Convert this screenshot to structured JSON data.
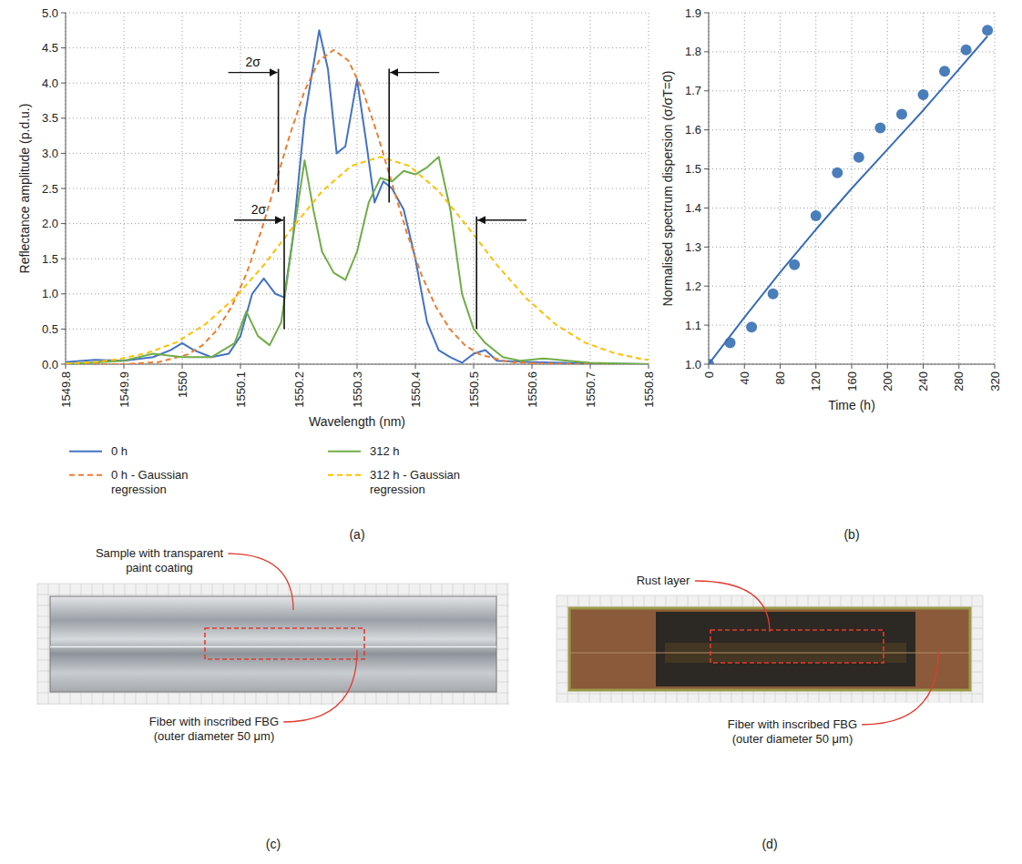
{
  "chart_data": [
    {
      "type": "line",
      "panel_label": "(a)",
      "x_label": "Wavelength (nm)",
      "y_label": "Reflectance amplitude (p.d.u.)",
      "xlim": [
        1549.8,
        1550.8
      ],
      "xticks": [
        1549.8,
        1549.9,
        1550,
        1550.1,
        1550.2,
        1550.3,
        1550.4,
        1550.5,
        1550.6,
        1550.7,
        1550.8
      ],
      "ylim": [
        0,
        5
      ],
      "yticks": [
        {
          "value": 0,
          "label": "0.0"
        },
        0.5,
        {
          "value": 1,
          "label": "1.0"
        },
        1.5,
        {
          "value": 2,
          "label": "2.0"
        },
        2.5,
        {
          "value": 3,
          "label": "3.0"
        },
        3.5,
        {
          "value": 4,
          "label": "4.0"
        },
        4.5,
        {
          "value": 5,
          "label": "5.0"
        }
      ],
      "grid": true,
      "legend": "bottom",
      "series": [
        {
          "name": "0 h",
          "color": "#4472c4",
          "line_style": "solid",
          "x": [
            1549.8,
            1549.85,
            1549.9,
            1549.95,
            1549.98,
            1550,
            1550.02,
            1550.05,
            1550.08,
            1550.1,
            1550.12,
            1550.14,
            1550.16,
            1550.175,
            1550.19,
            1550.21,
            1550.235,
            1550.25,
            1550.265,
            1550.28,
            1550.3,
            1550.315,
            1550.33,
            1550.345,
            1550.36,
            1550.38,
            1550.4,
            1550.42,
            1550.44,
            1550.46,
            1550.48,
            1550.5,
            1550.52,
            1550.54,
            1550.6,
            1550.7,
            1550.8
          ],
          "values": [
            0.03,
            0.06,
            0.05,
            0.1,
            0.2,
            0.3,
            0.2,
            0.1,
            0.15,
            0.4,
            1.0,
            1.22,
            1.0,
            0.95,
            1.8,
            3.5,
            4.75,
            4.2,
            3.0,
            3.1,
            4.05,
            3.2,
            2.3,
            2.6,
            2.5,
            2.2,
            1.5,
            0.6,
            0.2,
            0.1,
            0.02,
            0.15,
            0.2,
            0.05,
            0.03,
            0.01,
            0
          ]
        },
        {
          "name": "0 h - Gaussian regression",
          "color": "#ed7d31",
          "line_style": "dashed",
          "x": [
            1549.8,
            1549.9,
            1549.96,
            1550.01,
            1550.035,
            1550.06,
            1550.085,
            1550.11,
            1550.135,
            1550.16,
            1550.185,
            1550.21,
            1550.235,
            1550.26,
            1550.285,
            1550.31,
            1550.335,
            1550.36,
            1550.385,
            1550.41,
            1550.435,
            1550.46,
            1550.485,
            1550.51,
            1550.56,
            1550.61,
            1550.7,
            1550.8
          ],
          "values": [
            0,
            0,
            0.03,
            0.14,
            0.27,
            0.49,
            0.82,
            1.28,
            1.88,
            2.57,
            3.27,
            3.89,
            4.32,
            4.47,
            4.32,
            3.89,
            3.27,
            2.57,
            1.88,
            1.28,
            0.82,
            0.49,
            0.27,
            0.14,
            0.03,
            0.01,
            0,
            0
          ]
        },
        {
          "name": "312 h",
          "color": "#70ad47",
          "line_style": "solid",
          "x": [
            1549.8,
            1549.9,
            1549.95,
            1550,
            1550.05,
            1550.09,
            1550.11,
            1550.13,
            1550.15,
            1550.17,
            1550.19,
            1550.21,
            1550.225,
            1550.24,
            1550.26,
            1550.28,
            1550.3,
            1550.32,
            1550.34,
            1550.36,
            1550.38,
            1550.4,
            1550.42,
            1550.44,
            1550.46,
            1550.48,
            1550.5,
            1550.52,
            1550.55,
            1550.58,
            1550.62,
            1550.7,
            1550.8
          ],
          "values": [
            0,
            0.05,
            0.15,
            0.1,
            0.1,
            0.3,
            0.75,
            0.4,
            0.27,
            0.6,
            1.8,
            2.9,
            2.2,
            1.6,
            1.3,
            1.2,
            1.6,
            2.3,
            2.65,
            2.6,
            2.75,
            2.7,
            2.8,
            2.95,
            2.2,
            1.0,
            0.5,
            0.3,
            0.1,
            0.05,
            0.08,
            0.02,
            0
          ]
        },
        {
          "name": "312 h - Gaussian regression",
          "color": "#ffc000",
          "line_style": "dashed",
          "x": [
            1549.8,
            1549.85,
            1549.89,
            1549.94,
            1549.99,
            1550.04,
            1550.09,
            1550.14,
            1550.19,
            1550.24,
            1550.29,
            1550.34,
            1550.39,
            1550.44,
            1550.49,
            1550.54,
            1550.59,
            1550.64,
            1550.69,
            1550.74,
            1550.79,
            1550.8
          ],
          "values": [
            0.01,
            0.03,
            0.07,
            0.16,
            0.31,
            0.57,
            0.94,
            1.41,
            1.95,
            2.46,
            2.82,
            2.95,
            2.82,
            2.46,
            1.95,
            1.41,
            0.94,
            0.57,
            0.31,
            0.16,
            0.07,
            0.06
          ]
        }
      ],
      "annotations": [
        {
          "text": "2σ",
          "x": [
            1550.165,
            1550.355
          ],
          "y": 4.15,
          "y_end": [
            2.45,
            2.3
          ]
        },
        {
          "text": "2σ",
          "x": [
            1550.175,
            1550.505
          ],
          "y": 2.05,
          "y_end": [
            0.5,
            0.5
          ]
        }
      ]
    },
    {
      "type": "scatter",
      "panel_label": "(b)",
      "x_label": "Time (h)",
      "y_label": "Normalised spectrum dispersion (σ/σT=0)",
      "xlim": [
        0,
        320
      ],
      "xticks": [
        0,
        40,
        80,
        120,
        160,
        200,
        240,
        280,
        320
      ],
      "ylim": [
        1,
        1.9
      ],
      "yticks": [
        {
          "value": 1,
          "label": "1.0"
        },
        1.1,
        1.2,
        1.3,
        1.4,
        1.5,
        1.6,
        1.7,
        1.8,
        1.9
      ],
      "grid": true,
      "series": [
        {
          "type": "scatter",
          "color": "#4a7ebb",
          "marker": "circle",
          "x": [
            0,
            24,
            48,
            72,
            96,
            120,
            144,
            168,
            192,
            216,
            240,
            264,
            288,
            312
          ],
          "values": [
            1.0,
            1.055,
            1.095,
            1.18,
            1.255,
            1.38,
            1.49,
            1.53,
            1.605,
            1.64,
            1.69,
            1.75,
            1.805,
            1.855
          ]
        },
        {
          "type": "line",
          "color": "#3a6db5",
          "line_style": "solid",
          "x": [
            0,
            40,
            80,
            120,
            160,
            200,
            240,
            280,
            312
          ],
          "values": [
            1.0,
            1.12,
            1.235,
            1.345,
            1.45,
            1.55,
            1.65,
            1.755,
            1.84
          ]
        }
      ]
    }
  ],
  "photos": [
    {
      "panel_label": "(c)",
      "annotations": [
        {
          "lines": [
            "Sample with transparent",
            "paint coating"
          ]
        },
        {
          "lines": [
            "Fiber with inscribed FBG",
            "(outer diameter 50 μm)"
          ]
        }
      ]
    },
    {
      "panel_label": "(d)",
      "annotations": [
        {
          "lines": [
            "Rust layer"
          ]
        },
        {
          "lines": [
            "Fiber with inscribed FBG",
            "(outer diameter 50 μm)"
          ]
        }
      ]
    }
  ]
}
